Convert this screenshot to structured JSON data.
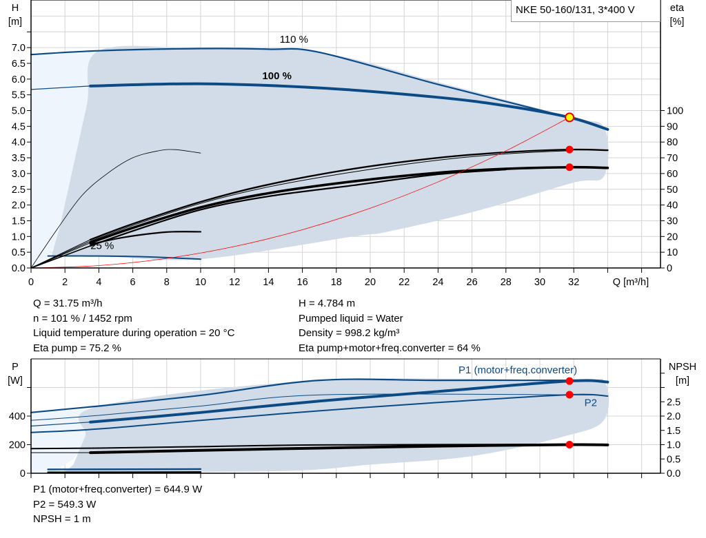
{
  "legend_box": "NKE 50-160/131, 3*400 V",
  "colors": {
    "curve_blue": "#0b4a85",
    "area_dark": "#d1dce8",
    "area_light": "#eef5fc",
    "system_curve": "#ff0000",
    "duty_point": "#ffff00",
    "grid": "#d4d4d4"
  },
  "info_top": {
    "left": [
      "Q = 31.75 m³/h",
      "n = 101 % / 1452 rpm",
      "Liquid temperature during operation = 20 °C",
      "Eta pump = 75.2 %"
    ],
    "right": [
      "H = 4.784 m",
      "Pumped liquid = Water",
      "Density = 998.2 kg/m³",
      "Eta pump+motor+freq.converter = 64 %"
    ]
  },
  "info_bottom": [
    "P1 (motor+freq.converter) = 644.9 W",
    "P2 = 549.3 W",
    "NPSH = 1 m"
  ],
  "chart_data": [
    {
      "type": "line",
      "title": "",
      "ylabel": [
        "H",
        "[m]"
      ],
      "y2label": [
        "eta",
        "[%]"
      ],
      "xlabel": "Q [m³/h]",
      "xlim": [
        0,
        37
      ],
      "ylim": [
        0,
        8.5
      ],
      "y2lim": [
        0,
        170
      ],
      "grid": true,
      "x_ticks": [
        0,
        2,
        4,
        6,
        8,
        10,
        12,
        14,
        16,
        18,
        20,
        22,
        24,
        26,
        28,
        30,
        32
      ],
      "x_ticks_unlabeled": [
        34,
        36
      ],
      "y_ticks": [
        "0.0",
        "0.5",
        "1.0",
        "1.5",
        "2.0",
        "2.5",
        "3.0",
        "3.5",
        "4.0",
        "4.5",
        "5.0",
        "5.5",
        "6.0",
        "6.5",
        "7.0"
      ],
      "y2_ticks": [
        "0",
        "10",
        "20",
        "30",
        "40",
        "50",
        "60",
        "70",
        "80",
        "90",
        "100"
      ],
      "curve_labels": [
        {
          "text": "110 %",
          "q": 15.5,
          "h": 7.15,
          "bold": false
        },
        {
          "text": "100 %",
          "q": 14.5,
          "h": 6.0,
          "bold": true
        },
        {
          "text": "25 %",
          "q": 4.2,
          "h": 0.6,
          "bold": false
        }
      ],
      "area_light": [
        [
          0,
          0
        ],
        [
          0,
          6.78
        ],
        [
          4,
          6.9
        ],
        [
          3.5,
          5.0
        ],
        [
          2.5,
          2.5
        ],
        [
          1.5,
          0.8
        ],
        [
          0.8,
          0.2
        ],
        [
          0.6,
          0
        ]
      ],
      "area_dark": [
        [
          1.2,
          0.38
        ],
        [
          4,
          0.38
        ],
        [
          10,
          0.28
        ],
        [
          19,
          1.0
        ],
        [
          21,
          1.15
        ],
        [
          26.2,
          1.8
        ],
        [
          31.9,
          2.7
        ],
        [
          33.8,
          2.93
        ],
        [
          33.8,
          4.45
        ],
        [
          31.75,
          4.8
        ],
        [
          24,
          5.9
        ],
        [
          17,
          6.85
        ],
        [
          10,
          6.97
        ],
        [
          4,
          6.9
        ],
        [
          3.3,
          5.2
        ],
        [
          2.4,
          3.0
        ],
        [
          1.7,
          1.3
        ]
      ],
      "series": [
        {
          "name": "110 %",
          "color": "#0b4a85",
          "width": 2.2,
          "points": [
            [
              0,
              6.78
            ],
            [
              4,
              6.9
            ],
            [
              10,
              6.97
            ],
            [
              14,
              6.95
            ],
            [
              17,
              6.85
            ],
            [
              24,
              5.83
            ],
            [
              31.75,
              4.78
            ],
            [
              34,
              4.4
            ]
          ]
        },
        {
          "name": "100 %",
          "color": "#0b4a85",
          "width": 1.2,
          "points": [
            [
              0,
              5.67
            ],
            [
              3.5,
              5.78
            ]
          ]
        },
        {
          "name": "100 %",
          "color": "#0b4a85",
          "width": 4,
          "points": [
            [
              3.5,
              5.78
            ],
            [
              10,
              5.85
            ],
            [
              17,
              5.72
            ],
            [
              24,
              5.42
            ],
            [
              28,
              5.15
            ],
            [
              31.75,
              4.784
            ],
            [
              34,
              4.4
            ]
          ]
        },
        {
          "name": "25 %",
          "color": "#0b4a85",
          "width": 2,
          "points": [
            [
              1,
              0.38
            ],
            [
              4,
              0.38
            ],
            [
              7,
              0.35
            ],
            [
              10,
              0.28
            ]
          ]
        },
        {
          "name": "Eta pump",
          "color": "#000",
          "width": 2.4,
          "axis": "eta",
          "points": [
            [
              3.5,
              18
            ],
            [
              6,
              28
            ],
            [
              10,
              42
            ],
            [
              14,
              53
            ],
            [
              19,
              63
            ],
            [
              24,
              70
            ],
            [
              28,
              73.5
            ],
            [
              31.75,
              75.2
            ],
            [
              34,
              74.8
            ]
          ]
        },
        {
          "name": "",
          "color": "#000",
          "width": 1,
          "axis": "eta",
          "points": [
            [
              3.5,
              17
            ],
            [
              6,
              27
            ],
            [
              10,
              41
            ],
            [
              14,
              51.5
            ],
            [
              19,
              61
            ],
            [
              24,
              68.5
            ],
            [
              28,
              72.5
            ],
            [
              31.75,
              74.5
            ]
          ]
        },
        {
          "name": "Eta pump+motor+freq.converter",
          "color": "#000",
          "width": 3.6,
          "axis": "eta",
          "points": [
            [
              3.5,
              16
            ],
            [
              6,
              25.5
            ],
            [
              10,
              38.5
            ],
            [
              14,
              47.5
            ],
            [
              19,
              55
            ],
            [
              24,
              60.5
            ],
            [
              28,
              63
            ],
            [
              31.75,
              64
            ],
            [
              34,
              63.6
            ]
          ]
        },
        {
          "name": "",
          "color": "#000",
          "width": 2.2,
          "axis": "eta",
          "points": [
            [
              3.5,
              14
            ],
            [
              6,
              23.5
            ],
            [
              10,
              37
            ],
            [
              14,
              45.5
            ],
            [
              19,
              52.5
            ],
            [
              24,
              59.5
            ],
            [
              28,
              62.5
            ]
          ]
        },
        {
          "name": "",
          "color": "#000",
          "width": 2.2,
          "axis": "eta",
          "points": [
            [
              3.5,
              15
            ],
            [
              5.5,
              19.5
            ],
            [
              8,
              22.8
            ],
            [
              10,
              23
            ]
          ]
        },
        {
          "name": "",
          "color": "#000",
          "width": 0.8,
          "points": [
            [
              0,
              0
            ],
            [
              1.5,
              1.2
            ],
            [
              3,
              2.3
            ],
            [
              4.5,
              3.0
            ],
            [
              6,
              3.5
            ],
            [
              7.5,
              3.72
            ],
            [
              8.5,
              3.76
            ],
            [
              10,
              3.65
            ]
          ]
        },
        {
          "name": "",
          "color": "#000",
          "width": 1,
          "points": [
            [
              0,
              0
            ],
            [
              3.5,
              0.9
            ]
          ]
        },
        {
          "name": "",
          "color": "#000",
          "width": 1,
          "points": [
            [
              0,
              0
            ],
            [
              3.5,
              0.8
            ]
          ]
        },
        {
          "name": "",
          "color": "#000",
          "width": 1.6,
          "points": [
            [
              0,
              0
            ],
            [
              3.5,
              0.7
            ]
          ]
        },
        {
          "name": "",
          "color": "#000",
          "width": 1,
          "points": [
            [
              0,
              0
            ],
            [
              3.5,
              0.85
            ]
          ]
        },
        {
          "name": "",
          "color": "#ff0000",
          "width": 0.8,
          "points": [
            [
              0,
              0
            ],
            [
              4,
              0.076
            ],
            [
              8,
              0.304
            ],
            [
              12,
              0.683
            ],
            [
              16,
              1.215
            ],
            [
              20,
              1.898
            ],
            [
              24,
              2.734
            ],
            [
              28,
              3.721
            ],
            [
              31.75,
              4.784
            ]
          ]
        }
      ],
      "points": [
        {
          "name": "duty-point",
          "q": 31.75,
          "h": 4.784,
          "fill": "#ffff00"
        },
        {
          "name": "eta-pump-point",
          "q": 31.75,
          "eta": 75.2,
          "fill": "#ff0000"
        },
        {
          "name": "eta-total-point",
          "q": 31.75,
          "eta": 64,
          "fill": "#ff0000"
        }
      ]
    },
    {
      "type": "line",
      "title": "",
      "ylabel": [
        "P",
        "[W]"
      ],
      "y2label": [
        "NPSH",
        "[m]"
      ],
      "xlim": [
        0,
        37
      ],
      "ylim": [
        0,
        800
      ],
      "y2lim": [
        0,
        4
      ],
      "grid": true,
      "y_ticks": [
        "0",
        "200",
        "400"
      ],
      "y_ticks_unlabeled": [
        600
      ],
      "y2_ticks": [
        "0.0",
        "0.5",
        "1.0",
        "1.5",
        "2.0",
        "2.5"
      ],
      "y2_ticks_unlabeled": [
        3.0,
        3.5
      ],
      "curve_labels": [
        {
          "text": "P1 (motor+freq.converter)",
          "q": 28.7,
          "p": 700
        },
        {
          "text": "P2",
          "q": 33,
          "p": 470
        }
      ],
      "area_light": [
        [
          0,
          0
        ],
        [
          0,
          425
        ],
        [
          7,
          470
        ],
        [
          3.5,
          250
        ],
        [
          2.5,
          100
        ],
        [
          1.5,
          20
        ],
        [
          1,
          0
        ]
      ],
      "area_dark": [
        [
          2,
          10
        ],
        [
          10,
          10
        ],
        [
          16,
          20
        ],
        [
          20,
          60
        ],
        [
          26,
          120
        ],
        [
          31.5,
          260
        ],
        [
          33.8,
          375
        ],
        [
          33.8,
          640
        ],
        [
          31.75,
          650
        ],
        [
          17,
          650
        ],
        [
          4,
          470
        ],
        [
          3.2,
          260
        ],
        [
          2.5,
          60
        ]
      ],
      "series": [
        {
          "name": "P1 110 %",
          "color": "#0b4a85",
          "width": 2.2,
          "points": [
            [
              0,
              425
            ],
            [
              4,
              470
            ],
            [
              10,
              545
            ],
            [
              17,
              650
            ],
            [
              24,
              650
            ],
            [
              31.75,
              650
            ],
            [
              34,
              638
            ]
          ]
        },
        {
          "name": "P2 110 %",
          "color": "#0b4a85",
          "width": 1,
          "points": [
            [
              0,
              370
            ],
            [
              4,
              405
            ],
            [
              10,
              470
            ],
            [
              17,
              548
            ],
            [
              31.75,
              549
            ],
            [
              34,
              540
            ]
          ]
        },
        {
          "name": "P1 (motor+freq.converter)",
          "color": "#0b4a85",
          "width": 1.2,
          "points": [
            [
              0,
              330
            ],
            [
              3.5,
              358
            ]
          ]
        },
        {
          "name": "P1 (motor+freq.converter)",
          "color": "#0b4a85",
          "width": 4,
          "points": [
            [
              3.5,
              358
            ],
            [
              10,
              425
            ],
            [
              17,
              505
            ],
            [
              24,
              572
            ],
            [
              31.75,
              644.9
            ],
            [
              34,
              638
            ]
          ]
        },
        {
          "name": "P2",
          "color": "#0b4a85",
          "width": 2,
          "points": [
            [
              0,
              285
            ],
            [
              4,
              310
            ],
            [
              10,
              370
            ],
            [
              17,
              437
            ],
            [
              24,
              495
            ],
            [
              31.75,
              549.3
            ],
            [
              34,
              540
            ]
          ]
        },
        {
          "name": "P1 25 %",
          "color": "#0b4a85",
          "width": 2.4,
          "points": [
            [
              1,
              27
            ],
            [
              10,
              29
            ]
          ]
        },
        {
          "name": "NPSH",
          "color": "#000",
          "width": 4,
          "axis": "npsh",
          "points": [
            [
              3.5,
              0.72
            ],
            [
              10,
              0.8
            ],
            [
              17,
              0.88
            ],
            [
              24,
              0.95
            ],
            [
              31.75,
              1.0
            ],
            [
              34,
              0.99
            ]
          ]
        },
        {
          "name": "NPSH 110 %",
          "color": "#000",
          "width": 2,
          "axis": "npsh",
          "points": [
            [
              0,
              0.86
            ],
            [
              4,
              0.88
            ],
            [
              10,
              0.93
            ],
            [
              17,
              0.99
            ],
            [
              31.75,
              1.01
            ],
            [
              34,
              1.0
            ]
          ]
        },
        {
          "name": "",
          "color": "#000",
          "width": 1,
          "axis": "npsh",
          "points": [
            [
              0,
              0.72
            ],
            [
              3.5,
              0.72
            ]
          ]
        },
        {
          "name": "NPSH 25 %",
          "color": "#000",
          "width": 2.4,
          "axis": "npsh",
          "points": [
            [
              1,
              0.03
            ],
            [
              10,
              0.04
            ]
          ]
        },
        {
          "name": "",
          "color": "#888",
          "width": 1,
          "points": [
            [
              0,
              0
            ],
            [
              1,
              0
            ]
          ]
        }
      ],
      "points": [
        {
          "name": "p1-point",
          "q": 31.75,
          "p": 644.9,
          "fill": "#ff0000"
        },
        {
          "name": "p2-point",
          "q": 31.75,
          "p": 549.3,
          "fill": "#ff0000"
        },
        {
          "name": "npsh-point",
          "q": 31.75,
          "npsh": 1.0,
          "fill": "#ff0000"
        }
      ]
    }
  ]
}
